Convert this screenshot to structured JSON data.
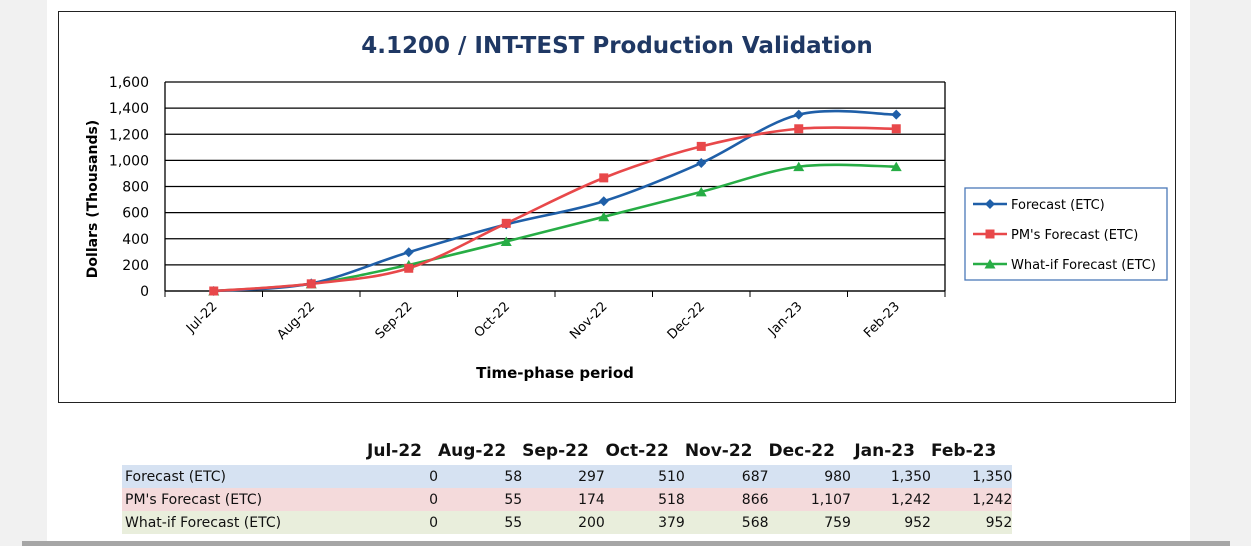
{
  "chart_data": {
    "type": "line",
    "title": "4.1200 / INT-TEST Production Validation",
    "xlabel": "Time-phase period",
    "ylabel": "Dollars (Thousands)",
    "ylim": [
      0,
      1600
    ],
    "yticks": [
      "0",
      "200",
      "400",
      "600",
      "800",
      "1,000",
      "1,200",
      "1,400",
      "1,600"
    ],
    "categories": [
      "Jul-22",
      "Aug-22",
      "Sep-22",
      "Oct-22",
      "Nov-22",
      "Dec-22",
      "Jan-23",
      "Feb-23"
    ],
    "grid": true,
    "legend_position": "right",
    "series": [
      {
        "name": "Forecast (ETC)",
        "color": "#1f5fa8",
        "marker": "diamond",
        "values": [
          0,
          58,
          297,
          510,
          687,
          980,
          1350,
          1350
        ]
      },
      {
        "name": "PM's Forecast (ETC)",
        "color": "#e8484a",
        "marker": "square",
        "values": [
          0,
          55,
          174,
          518,
          866,
          1107,
          1242,
          1242
        ]
      },
      {
        "name": "What-if Forecast (ETC)",
        "color": "#27ad45",
        "marker": "triangle",
        "values": [
          0,
          55,
          200,
          379,
          568,
          759,
          952,
          952
        ]
      }
    ]
  },
  "table": {
    "headers": [
      "Jul-22",
      "Aug-22",
      "Sep-22",
      "Oct-22",
      "Nov-22",
      "Dec-22",
      "Jan-23",
      "Feb-23"
    ],
    "rows": [
      {
        "name": "Forecast (ETC)",
        "values": [
          "0",
          "58",
          "297",
          "510",
          "687",
          "980",
          "1,350",
          "1,350"
        ]
      },
      {
        "name": "PM's Forecast (ETC)",
        "values": [
          "0",
          "55",
          "174",
          "518",
          "866",
          "1,107",
          "1,242",
          "1,242"
        ]
      },
      {
        "name": "What-if Forecast (ETC)",
        "values": [
          "0",
          "55",
          "200",
          "379",
          "568",
          "759",
          "952",
          "952"
        ]
      }
    ]
  }
}
